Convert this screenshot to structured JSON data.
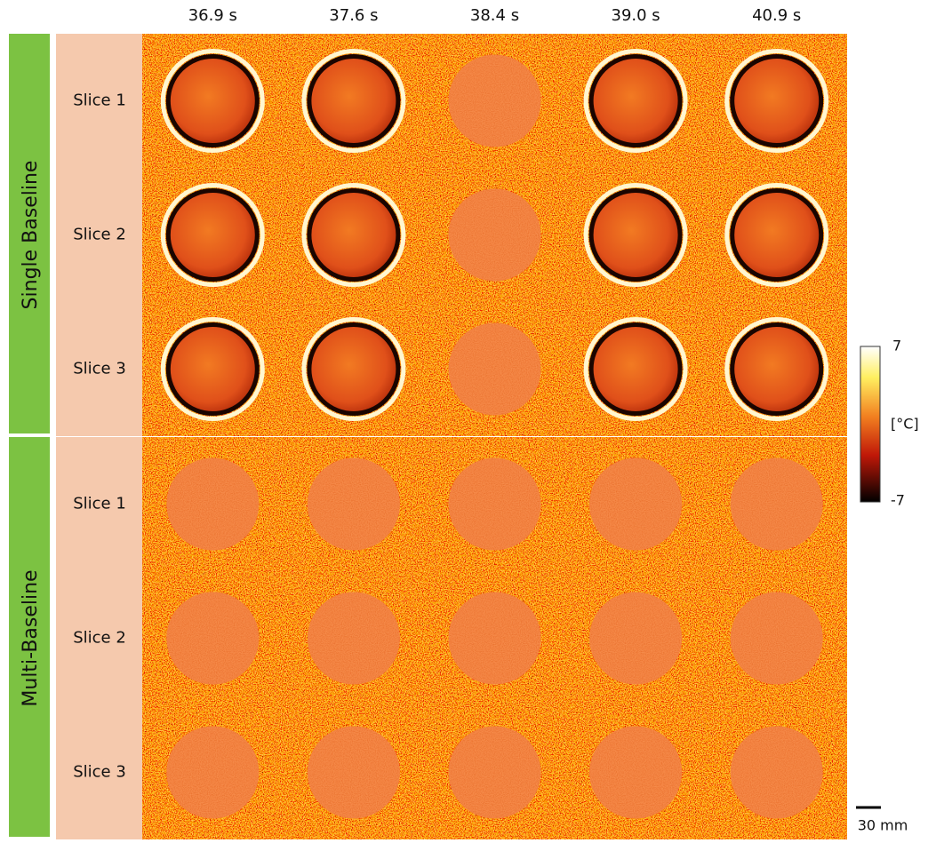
{
  "header": {
    "columns": [
      "36.9 s",
      "37.6 s",
      "38.4 s",
      "39.0 s",
      "40.9 s"
    ]
  },
  "groups": [
    {
      "label": "Single Baseline",
      "rows": [
        "Slice 1",
        "Slice 2",
        "Slice 3"
      ]
    },
    {
      "label": "Multi-Baseline",
      "rows": [
        "Slice 1",
        "Slice 2",
        "Slice 3"
      ]
    }
  ],
  "colorbar": {
    "max": 7,
    "unit": "[°C]",
    "min": -7
  },
  "scale_bar": "30 mm"
}
